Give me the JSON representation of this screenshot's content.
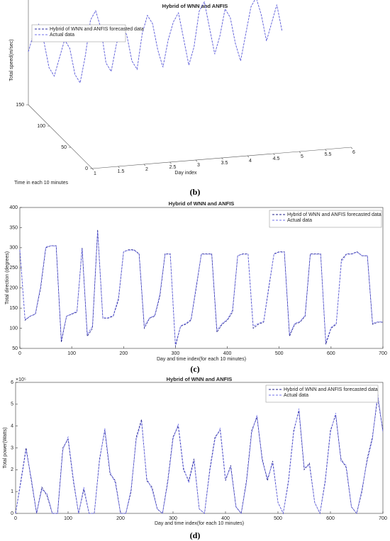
{
  "chart_data": [
    {
      "type": "line3d",
      "title": "Hybrid of WNN and ANFIS",
      "caption": "(b)",
      "xlabel": "Day index",
      "ylabel": "Time in each 10 minutes",
      "zlabel": "Total speed(m/sec)",
      "xlim": [
        1,
        6
      ],
      "xticks": [
        1,
        1.5,
        2,
        2.5,
        3,
        3.5,
        4,
        4.5,
        5,
        5.5,
        6
      ],
      "ylim": [
        0,
        150
      ],
      "yticks": [
        0,
        50,
        100,
        150
      ],
      "zlim": [
        0,
        12
      ],
      "x": [
        1,
        1.1,
        1.2,
        1.3,
        1.4,
        1.5,
        1.6,
        1.7,
        1.8,
        1.9,
        2,
        2.1,
        2.2,
        2.3,
        2.4,
        2.5,
        2.6,
        2.7,
        2.8,
        2.9,
        3,
        3.1,
        3.2,
        3.3,
        3.4,
        3.5,
        3.6,
        3.7,
        3.8,
        3.9,
        4,
        4.1,
        4.2,
        4.3,
        4.4,
        4.5,
        4.6,
        4.7,
        4.8,
        4.9,
        5,
        5.1,
        5.2,
        5.3,
        5.4,
        5.5,
        5.6,
        5.7,
        5.8,
        5.9
      ],
      "series": [
        {
          "name": "Hybrid of WNN and ANFIS forecasted data",
          "color": "#2b2b9e",
          "values": [
            6,
            8,
            9,
            7,
            4,
            3,
            5,
            7,
            6,
            3,
            2,
            5,
            9,
            10,
            8,
            4,
            3,
            6,
            8,
            7,
            4,
            3,
            7,
            9,
            8,
            5,
            3,
            6,
            8,
            9,
            6,
            3,
            5,
            9,
            10,
            7,
            4,
            6,
            9,
            8,
            5,
            3,
            6,
            9,
            10,
            8,
            5,
            7,
            9,
            6
          ]
        },
        {
          "name": "Actual data",
          "color": "#7070e8",
          "values": [
            6,
            8,
            9,
            7,
            4,
            3,
            5,
            7,
            6,
            3,
            2,
            5,
            9,
            10,
            8,
            4,
            3,
            6,
            8,
            7,
            4,
            3,
            7,
            9,
            8,
            5,
            3,
            6,
            8,
            9,
            6,
            3,
            5,
            9,
            10,
            7,
            4,
            6,
            9,
            8,
            5,
            3,
            6,
            9,
            10,
            8,
            5,
            7,
            9,
            6
          ]
        }
      ]
    },
    {
      "type": "line",
      "title": "Hybrid of WNN and ANFIS",
      "caption": "(c)",
      "xlabel": "Day and time index(for each 10 minutes)",
      "ylabel": "Total direction (degrees)",
      "xlim": [
        0,
        700
      ],
      "xticks": [
        0,
        100,
        200,
        300,
        400,
        500,
        600,
        700
      ],
      "ylim": [
        50,
        400
      ],
      "yticks": [
        50,
        100,
        150,
        200,
        250,
        300,
        350,
        400
      ],
      "x": [
        0,
        10,
        20,
        30,
        40,
        50,
        60,
        70,
        80,
        90,
        100,
        110,
        120,
        130,
        140,
        150,
        160,
        170,
        180,
        190,
        200,
        210,
        220,
        230,
        240,
        250,
        260,
        270,
        280,
        290,
        300,
        310,
        320,
        330,
        340,
        350,
        360,
        370,
        380,
        390,
        400,
        410,
        420,
        430,
        440,
        450,
        460,
        470,
        480,
        490,
        500,
        510,
        520,
        530,
        540,
        550,
        560,
        570,
        580,
        590,
        600,
        610,
        620,
        630,
        640,
        650,
        660,
        670,
        680,
        690,
        700
      ],
      "series": [
        {
          "name": "Hybrid of WNN and ANFIS forecasted data",
          "color": "#1c1c8a",
          "values": [
            295,
            120,
            130,
            135,
            200,
            300,
            305,
            305,
            65,
            130,
            135,
            140,
            300,
            80,
            100,
            345,
            125,
            125,
            130,
            170,
            290,
            295,
            295,
            285,
            100,
            125,
            130,
            180,
            285,
            285,
            55,
            105,
            110,
            120,
            200,
            285,
            285,
            285,
            90,
            110,
            120,
            140,
            280,
            285,
            285,
            100,
            110,
            115,
            200,
            285,
            290,
            290,
            80,
            110,
            115,
            130,
            285,
            285,
            285,
            60,
            100,
            110,
            270,
            285,
            285,
            290,
            280,
            280,
            110,
            115,
            115
          ]
        },
        {
          "name": "Actual data",
          "color": "#7070e8",
          "values": [
            295,
            122,
            130,
            136,
            205,
            302,
            305,
            304,
            70,
            130,
            136,
            142,
            298,
            85,
            105,
            340,
            126,
            126,
            132,
            175,
            290,
            294,
            294,
            284,
            105,
            126,
            132,
            185,
            284,
            284,
            60,
            106,
            112,
            122,
            205,
            284,
            284,
            284,
            95,
            112,
            122,
            145,
            280,
            284,
            284,
            105,
            112,
            117,
            205,
            284,
            289,
            289,
            85,
            112,
            117,
            132,
            284,
            284,
            284,
            65,
            102,
            112,
            265,
            284,
            284,
            289,
            280,
            280,
            112,
            116,
            116
          ]
        }
      ]
    },
    {
      "type": "line",
      "title": "Hybrid of WNN and ANFIS",
      "caption": "(d)",
      "xlabel": "Day and time index(for each 10 minutes)",
      "ylabel": "Total power(Watts)",
      "y_multiplier": "×10⁵",
      "xlim": [
        0,
        700
      ],
      "xticks": [
        0,
        100,
        200,
        300,
        400,
        500,
        600,
        700
      ],
      "ylim": [
        0,
        6
      ],
      "yticks": [
        0,
        1,
        2,
        3,
        4,
        5,
        6
      ],
      "x": [
        0,
        10,
        20,
        30,
        40,
        50,
        60,
        70,
        80,
        90,
        100,
        110,
        120,
        130,
        140,
        150,
        160,
        170,
        180,
        190,
        200,
        210,
        220,
        230,
        240,
        250,
        260,
        270,
        280,
        290,
        300,
        310,
        320,
        330,
        340,
        350,
        360,
        370,
        380,
        390,
        400,
        410,
        420,
        430,
        440,
        450,
        460,
        470,
        480,
        490,
        500,
        510,
        520,
        530,
        540,
        550,
        560,
        570,
        580,
        590,
        600,
        610,
        620,
        630,
        640,
        650,
        660,
        670,
        680,
        690,
        700
      ],
      "series": [
        {
          "name": "Hybrid of WNN and ANFIS forecasted data",
          "color": "#1c1c8a",
          "values": [
            0,
            1.5,
            3.0,
            1.5,
            0,
            1.2,
            0.8,
            0,
            0,
            3.0,
            3.4,
            1.5,
            0,
            1.1,
            0,
            0,
            2.5,
            3.8,
            1.8,
            1.5,
            0,
            0,
            1.0,
            3.5,
            4.3,
            1.5,
            1.2,
            0.2,
            0,
            1.5,
            3.5,
            4.0,
            2.0,
            1.5,
            2.5,
            0.2,
            0,
            2.0,
            3.5,
            3.8,
            1.5,
            2.2,
            0.3,
            0,
            1.5,
            3.8,
            4.4,
            2.5,
            1.5,
            2.4,
            0.5,
            0,
            1.5,
            3.8,
            4.7,
            2.0,
            2.3,
            0.5,
            0,
            1.5,
            3.8,
            4.5,
            2.5,
            2.1,
            0.3,
            0,
            1.0,
            2.5,
            3.5,
            5.3,
            3.8
          ]
        },
        {
          "name": "Actual data",
          "color": "#7070e8",
          "values": [
            0,
            1.4,
            2.9,
            1.6,
            0,
            1.1,
            0.9,
            0,
            0,
            2.9,
            3.5,
            1.6,
            0,
            1.2,
            0,
            0,
            2.4,
            3.9,
            1.9,
            1.4,
            0,
            0,
            1.1,
            3.4,
            4.2,
            1.6,
            1.1,
            0.2,
            0,
            1.4,
            3.4,
            4.1,
            2.1,
            1.4,
            2.4,
            0.2,
            0,
            1.9,
            3.4,
            3.9,
            1.6,
            2.1,
            0.3,
            0,
            1.4,
            3.7,
            4.5,
            2.4,
            1.6,
            2.3,
            0.5,
            0,
            1.4,
            3.7,
            4.8,
            2.1,
            2.2,
            0.5,
            0,
            1.4,
            3.7,
            4.6,
            2.4,
            2.2,
            0.3,
            0,
            1.1,
            2.4,
            3.4,
            5.5,
            3.7
          ]
        }
      ]
    }
  ]
}
